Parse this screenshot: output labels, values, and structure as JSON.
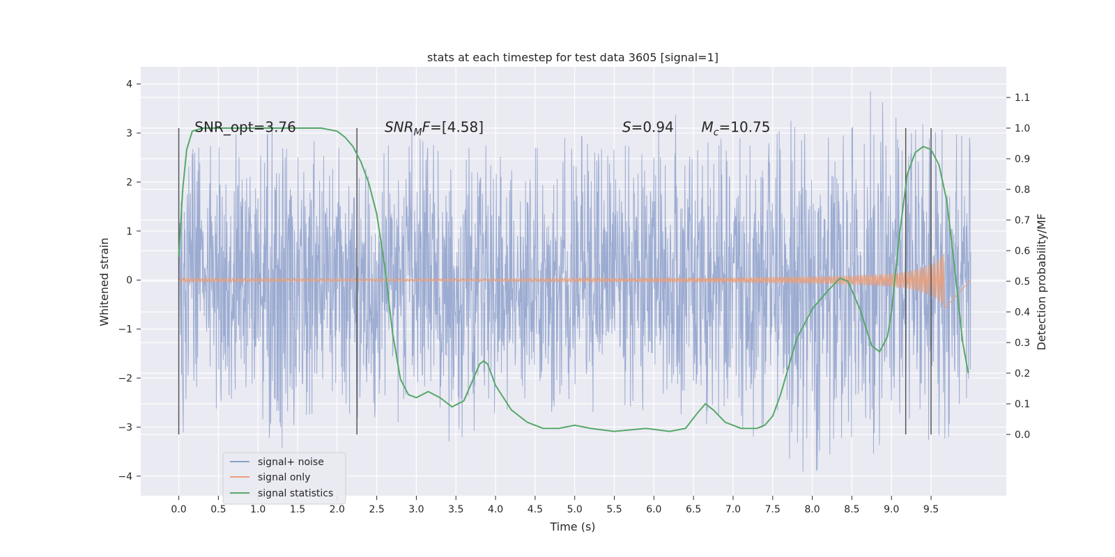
{
  "chart_data": {
    "type": "line",
    "title": "stats at each timestep for test data 3605 [signal=1]",
    "xlabel": "Time (s)",
    "ylabel": "Whitened strain",
    "ylabel_right": "Detection probability/MF",
    "xlim": [
      -0.48,
      10.45
    ],
    "ylim": [
      -4.4,
      4.35
    ],
    "ylim_right": [
      -0.2,
      1.2
    ],
    "x_ticks": [
      0.0,
      0.5,
      1.0,
      1.5,
      2.0,
      2.5,
      3.0,
      3.5,
      4.0,
      4.5,
      5.0,
      5.5,
      6.0,
      6.5,
      7.0,
      7.5,
      8.0,
      8.5,
      9.0,
      9.5
    ],
    "x_tick_labels": [
      "0.0",
      "0.5",
      "1.0",
      "1.5",
      "2.0",
      "2.5",
      "3.0",
      "3.5",
      "4.0",
      "4.5",
      "5.0",
      "5.5",
      "6.0",
      "6.5",
      "7.0",
      "7.5",
      "8.0",
      "8.5",
      "9.0",
      "9.5"
    ],
    "y_ticks": [
      -4,
      -3,
      -2,
      -1,
      0,
      1,
      2,
      3,
      4
    ],
    "y_tick_labels": [
      "−4",
      "−3",
      "−2",
      "−1",
      "0",
      "1",
      "2",
      "3",
      "4"
    ],
    "y_ticks_right": [
      0.0,
      0.1,
      0.2,
      0.3,
      0.4,
      0.5,
      0.6,
      0.7,
      0.8,
      0.9,
      1.0,
      1.1
    ],
    "y_tick_labels_right": [
      "0.0",
      "0.1",
      "0.2",
      "0.3",
      "0.4",
      "0.5",
      "0.6",
      "0.7",
      "0.8",
      "0.9",
      "1.0",
      "1.1"
    ],
    "grid": true,
    "legend_position": "lower-left",
    "annotations": [
      {
        "text": "SNR_opt=3.76",
        "x": 0.2,
        "y": 3.02
      },
      {
        "text": "SNR_MF=[4.58]",
        "x": 2.6,
        "y": 3.02
      },
      {
        "text": "S=0.94",
        "x": 5.6,
        "y": 3.02
      },
      {
        "text": "M_c=10.75",
        "x": 6.6,
        "y": 3.02
      }
    ],
    "vertical_lines": {
      "x": [
        0.0,
        2.25,
        9.18,
        9.5
      ],
      "y_range": [
        -3.15,
        3.1
      ],
      "color": "#555555"
    },
    "series": [
      {
        "name": "signal+ noise",
        "axis": "left",
        "color": "#8da0cb",
        "description": "noise envelope",
        "x": [
          0.0,
          0.25,
          0.5,
          0.75,
          1.0,
          1.25,
          1.5,
          1.75,
          2.0,
          2.25,
          2.5,
          2.75,
          3.0,
          3.25,
          3.5,
          3.75,
          4.0,
          4.25,
          4.5,
          4.75,
          5.0,
          5.25,
          5.5,
          5.75,
          6.0,
          6.25,
          6.5,
          6.75,
          7.0,
          7.25,
          7.5,
          7.75,
          8.0,
          8.25,
          8.5,
          8.75,
          9.0,
          9.25,
          9.5,
          9.75,
          10.0
        ],
        "y_upper": [
          2.6,
          2.7,
          2.8,
          3.0,
          2.6,
          3.4,
          2.5,
          2.9,
          2.7,
          2.6,
          2.8,
          2.7,
          3.8,
          2.6,
          3.0,
          2.8,
          2.9,
          3.1,
          2.7,
          2.7,
          3.1,
          2.6,
          2.8,
          2.7,
          3.0,
          3.5,
          2.8,
          2.8,
          3.0,
          2.7,
          2.9,
          3.3,
          2.9,
          3.1,
          3.1,
          3.9,
          3.4,
          3.0,
          3.3,
          3.0,
          2.9
        ],
        "y_lower": [
          -3.2,
          -2.8,
          -2.6,
          -2.9,
          -2.7,
          -3.6,
          -2.8,
          -2.7,
          -2.6,
          -2.8,
          -2.8,
          -3.6,
          -2.9,
          -2.6,
          -4.0,
          -3.0,
          -2.7,
          -2.6,
          -2.6,
          -2.7,
          -2.6,
          -2.7,
          -2.8,
          -2.7,
          -2.6,
          -2.7,
          -2.8,
          -3.0,
          -2.9,
          -3.2,
          -2.8,
          -3.8,
          -4.0,
          -3.5,
          -3.2,
          -3.6,
          -3.0,
          -3.0,
          -3.3,
          -3.2,
          -2.2
        ]
      },
      {
        "name": "signal only",
        "axis": "left",
        "color": "#e8a07c",
        "description": "chirp envelope amplitude",
        "x": [
          0.0,
          2.0,
          4.0,
          5.0,
          6.0,
          7.0,
          7.5,
          8.0,
          8.5,
          9.0,
          9.2,
          9.4,
          9.55,
          9.65,
          9.67
        ],
        "amplitude": [
          0.03,
          0.02,
          0.02,
          0.03,
          0.04,
          0.05,
          0.06,
          0.07,
          0.09,
          0.13,
          0.17,
          0.25,
          0.35,
          0.5,
          0.58
        ],
        "x_end": 10.0
      },
      {
        "name": "signal statistics",
        "axis": "right",
        "color": "#55a868",
        "x": [
          0.0,
          0.05,
          0.1,
          0.17,
          0.3,
          0.6,
          1.0,
          1.5,
          1.8,
          2.0,
          2.1,
          2.2,
          2.3,
          2.4,
          2.5,
          2.6,
          2.7,
          2.8,
          2.9,
          3.0,
          3.15,
          3.3,
          3.45,
          3.6,
          3.7,
          3.8,
          3.85,
          3.9,
          4.0,
          4.2,
          4.4,
          4.6,
          4.8,
          5.0,
          5.2,
          5.5,
          5.9,
          6.2,
          6.4,
          6.55,
          6.65,
          6.75,
          6.9,
          7.1,
          7.3,
          7.4,
          7.5,
          7.6,
          7.7,
          7.8,
          8.0,
          8.2,
          8.35,
          8.45,
          8.6,
          8.75,
          8.85,
          8.95,
          9.0,
          9.1,
          9.2,
          9.3,
          9.4,
          9.5,
          9.6,
          9.7,
          9.8,
          9.9,
          9.97
        ],
        "y": [
          0.58,
          0.8,
          0.93,
          0.99,
          1.0,
          1.0,
          1.0,
          1.0,
          1.0,
          0.99,
          0.97,
          0.94,
          0.89,
          0.82,
          0.72,
          0.55,
          0.33,
          0.18,
          0.13,
          0.12,
          0.14,
          0.12,
          0.09,
          0.11,
          0.17,
          0.23,
          0.24,
          0.23,
          0.16,
          0.08,
          0.04,
          0.02,
          0.02,
          0.03,
          0.02,
          0.01,
          0.02,
          0.01,
          0.02,
          0.07,
          0.1,
          0.08,
          0.04,
          0.02,
          0.02,
          0.03,
          0.06,
          0.13,
          0.22,
          0.31,
          0.41,
          0.47,
          0.51,
          0.5,
          0.41,
          0.29,
          0.27,
          0.32,
          0.4,
          0.65,
          0.85,
          0.92,
          0.94,
          0.93,
          0.88,
          0.76,
          0.54,
          0.3,
          0.2
        ]
      }
    ]
  }
}
